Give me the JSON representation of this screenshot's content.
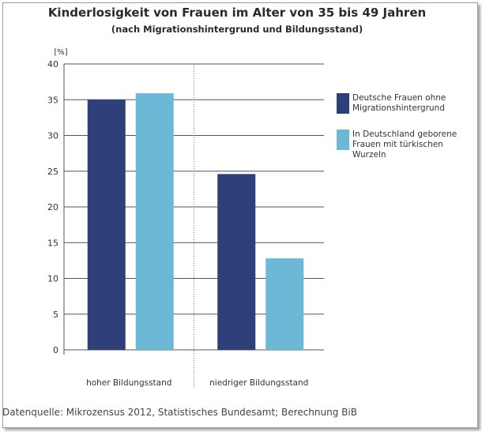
{
  "chart_data": {
    "type": "bar",
    "title": "Kinderlosigkeit von Frauen im Alter von 35 bis 49 Jahren",
    "subtitle": "(nach Migrationshintergrund und Bildungsstand)",
    "ylabel": "[%]",
    "xlabel": "",
    "ylim": [
      0,
      40
    ],
    "yticks": [
      0,
      5,
      10,
      15,
      20,
      25,
      30,
      35,
      40
    ],
    "grid": true,
    "legend_position": "right",
    "categories": [
      "hoher Bildungsstand",
      "niedriger Bildungsstand"
    ],
    "series": [
      {
        "name": "Deutsche Frauen ohne Migrationshintergrund",
        "color": "#2f3f7a",
        "values": [
          35.0,
          24.6
        ]
      },
      {
        "name": "In Deutschland geborene Frauen mit türkischen Wurzeln",
        "color": "#6db8d6",
        "values": [
          35.9,
          12.8
        ]
      }
    ],
    "source": "Datenquelle: Mikrozensus 2012, Statistisches Bundesamt; Berechnung BiB"
  }
}
